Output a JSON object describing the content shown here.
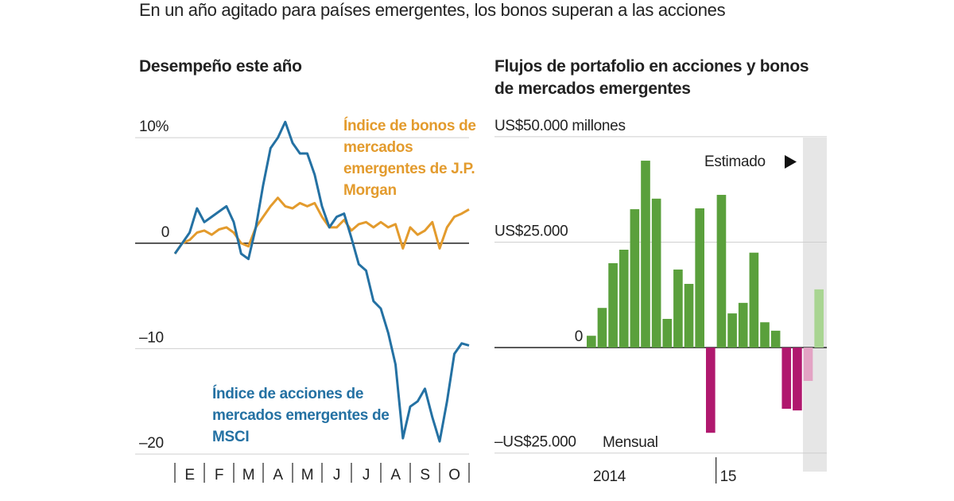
{
  "title": "En un año agitado para países emergentes, los bonos superan a las acciones",
  "chart_data": [
    {
      "type": "line",
      "title": "Desempeño este año",
      "x": [
        0,
        0.25,
        0.5,
        0.75,
        1,
        1.25,
        1.5,
        1.75,
        2,
        2.25,
        2.5,
        2.75,
        3,
        3.25,
        3.5,
        3.75,
        4,
        4.25,
        4.5,
        4.75,
        5,
        5.25,
        5.5,
        5.75,
        6,
        6.25,
        6.5,
        6.75,
        7,
        7.25,
        7.5,
        7.75,
        8,
        8.25,
        8.5,
        8.75,
        9,
        9.25,
        9.5,
        9.75,
        10
      ],
      "series": [
        {
          "name": "Índice de bonos de mercados emergentes de J.P. Morgan",
          "color": "#e39b2d",
          "values": [
            -1,
            0,
            0.3,
            1,
            1.2,
            0.8,
            1.3,
            1.5,
            1,
            0,
            -0.3,
            1.5,
            2.5,
            3.5,
            4.3,
            3.5,
            3.3,
            3.8,
            3.5,
            3.8,
            2.5,
            1.5,
            1.5,
            2.2,
            1.2,
            1.8,
            2,
            1.5,
            2,
            1.5,
            1.8,
            -0.5,
            1.5,
            0.8,
            1.2,
            2,
            -0.5,
            1.5,
            2.5,
            2.8,
            3.2
          ]
        },
        {
          "name": "Índice de acciones de mercados emergentes de MSCI",
          "color": "#2471a3",
          "values": [
            -1,
            0,
            1,
            3.3,
            2,
            2.5,
            3,
            3.5,
            2,
            -1,
            -1.5,
            1.5,
            5.5,
            9,
            10,
            11.5,
            9.5,
            8.5,
            8.5,
            6.5,
            3.5,
            1.5,
            2.5,
            2.8,
            0.5,
            -2,
            -2.6,
            -5.5,
            -6.2,
            -8.5,
            -11.5,
            -18.5,
            -15.5,
            -15,
            -13.8,
            -16.5,
            -18.8,
            -15,
            -10.5,
            -9.5,
            -9.7
          ]
        }
      ],
      "xlim": [
        0,
        10
      ],
      "xticks": [
        {
          "value": 0.5,
          "label": "E"
        },
        {
          "value": 1.5,
          "label": "F"
        },
        {
          "value": 2.5,
          "label": "M"
        },
        {
          "value": 3.5,
          "label": "A"
        },
        {
          "value": 4.5,
          "label": "M"
        },
        {
          "value": 5.5,
          "label": "J"
        },
        {
          "value": 6.5,
          "label": "J"
        },
        {
          "value": 7.5,
          "label": "A"
        },
        {
          "value": 8.5,
          "label": "S"
        },
        {
          "value": 9.5,
          "label": "O"
        }
      ],
      "ylim": [
        -20.3,
        12.5
      ],
      "yticks": [
        {
          "value": 10,
          "label": "10%"
        },
        0,
        {
          "value": -10,
          "label": "–10"
        },
        {
          "value": -20,
          "label": "–20"
        }
      ],
      "grid": true
    },
    {
      "type": "bar",
      "title": "Flujos de portafolio en acciones y bonos de mercados emergentes",
      "categories": [
        "2014",
        null,
        null,
        null,
        null,
        null,
        null,
        null,
        null,
        null,
        null,
        null,
        "15",
        null,
        null,
        null,
        null,
        null,
        null,
        null,
        null,
        null
      ],
      "values": [
        2800,
        9400,
        20000,
        23200,
        32800,
        44300,
        35300,
        6800,
        18500,
        15100,
        33000,
        -20200,
        36200,
        8100,
        10600,
        22500,
        6000,
        4000,
        -14500,
        -14900,
        -7900,
        13800
      ],
      "colors": [
        "#5aa03c",
        "#5aa03c",
        "#5aa03c",
        "#5aa03c",
        "#5aa03c",
        "#5aa03c",
        "#5aa03c",
        "#5aa03c",
        "#5aa03c",
        "#5aa03c",
        "#5aa03c",
        "#b0186e",
        "#5aa03c",
        "#5aa03c",
        "#5aa03c",
        "#5aa03c",
        "#5aa03c",
        "#5aa03c",
        "#b0186e",
        "#b0186e",
        "#e3a3c4",
        "#a9d592"
      ],
      "ylim": [
        -26000,
        56000
      ],
      "yticks": [
        {
          "value": 50000,
          "label": "US$50.000 millones"
        },
        {
          "value": 25000,
          "label": "US$25.000"
        },
        0,
        {
          "value": -25000,
          "label": "–US$25.000"
        }
      ],
      "grid": true,
      "annotations": [
        "Estimado",
        "Mensual"
      ]
    }
  ]
}
